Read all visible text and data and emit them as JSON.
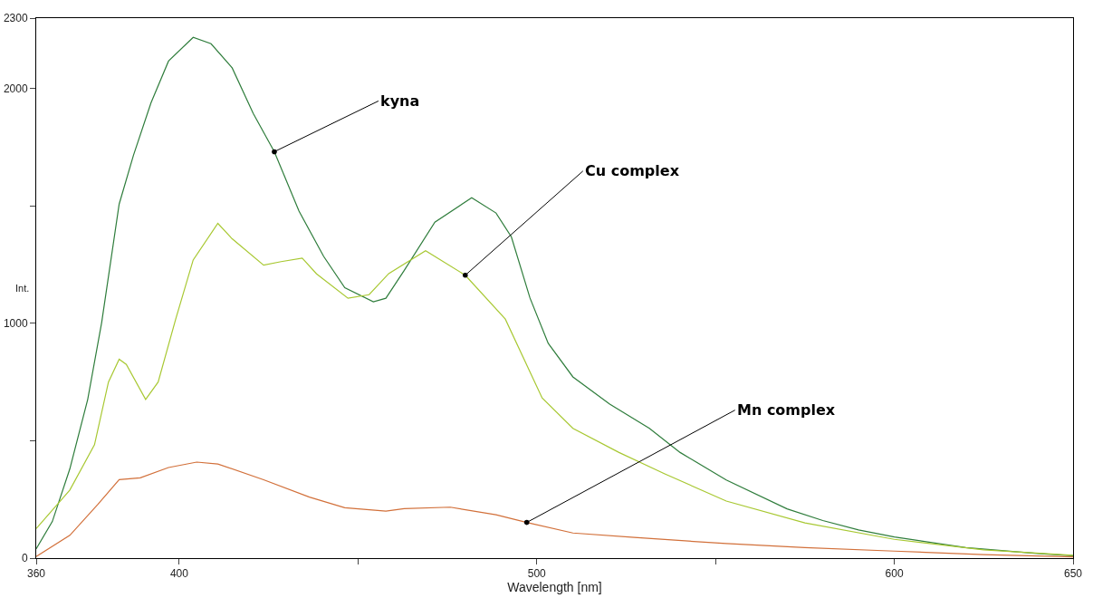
{
  "chart_data": {
    "type": "line",
    "xlabel": "Wavelength [nm]",
    "ylabel": "Int.",
    "xlim": [
      360,
      650
    ],
    "ylim": [
      0,
      2300
    ],
    "xticks": [
      360,
      400,
      {
        "value": 450,
        "label": null
      },
      500,
      {
        "value": 550,
        "label": null
      },
      600,
      650
    ],
    "yticks": [
      0,
      {
        "value": 500,
        "label": null
      },
      1000,
      {
        "value": 1500,
        "label": null
      },
      2000,
      2300
    ],
    "grid": false,
    "marker": "none",
    "line_style": "solid",
    "annotations": [
      {
        "text": "kyna",
        "x": 426.6,
        "y": 1731
      },
      {
        "text": "Cu complex",
        "x": 480,
        "y": 1205
      },
      {
        "text": "Mn complex",
        "x": 497.2,
        "y": 152
      }
    ],
    "series": [
      {
        "color": "#2f7d3c",
        "x": [
          360,
          364.5,
          369.4,
          374.4,
          378.3,
          383.2,
          387.2,
          392.1,
          397,
          403.9,
          408.9,
          414.8,
          420.7,
          426.6,
          433.5,
          440.4,
          446.3,
          454.3,
          457.8,
          462.9,
          471.5,
          481.8,
          488.6,
          492.9,
          498.1,
          503.2,
          510.1,
          520.4,
          531.5,
          540.1,
          553,
          570,
          580,
          590,
          600,
          620,
          640,
          650
        ],
        "values": [
          40,
          156,
          380,
          676,
          1003,
          1508,
          1716,
          1939,
          2117,
          2218,
          2191,
          2088,
          1894,
          1731,
          1478,
          1285,
          1152,
          1092,
          1107,
          1225,
          1431,
          1535,
          1470,
          1368,
          1108,
          915,
          772,
          656,
          553,
          450,
          333,
          210,
          160,
          120,
          90,
          45,
          20,
          10
        ]
      },
      {
        "color": "#a8c832",
        "x": [
          360,
          369.4,
          376.3,
          380.2,
          383.2,
          385.2,
          390.6,
          394.1,
          399,
          403.9,
          410.8,
          414.8,
          423.6,
          428.5,
          434.4,
          438.4,
          447.2,
          453.1,
          458.6,
          468.9,
          480,
          491.2,
          501.5,
          510.1,
          523,
          535.8,
          553,
          575,
          600,
          625,
          650
        ],
        "values": [
          126,
          290,
          483,
          750,
          847,
          825,
          676,
          750,
          1017,
          1270,
          1426,
          1360,
          1248,
          1263,
          1278,
          1211,
          1107,
          1122,
          1212,
          1309,
          1205,
          1018,
          682,
          553,
          450,
          359,
          243,
          150,
          80,
          35,
          12
        ]
      },
      {
        "color": "#d2703a",
        "x": [
          360,
          369.4,
          377.3,
          383.2,
          389.1,
          397,
          404.9,
          410.8,
          423.6,
          436.4,
          446.3,
          457.8,
          462.9,
          475.8,
          488.6,
          497.2,
          510.1,
          527.3,
          553,
          575,
          600,
          625,
          650
        ],
        "values": [
          7,
          97,
          230,
          334,
          342,
          386,
          409,
          401,
          334,
          260,
          215,
          200,
          211,
          217,
          185,
          152,
          107,
          88,
          62,
          45,
          30,
          15,
          5
        ]
      }
    ]
  }
}
